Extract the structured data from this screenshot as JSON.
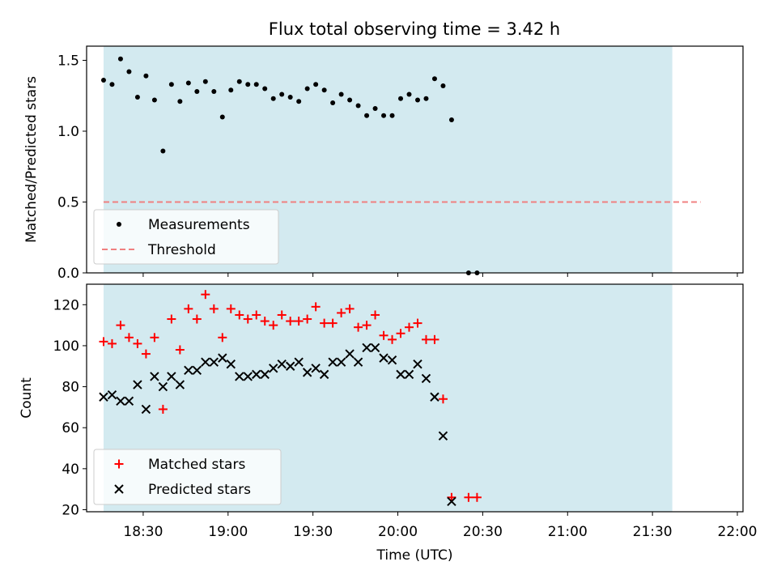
{
  "chart_data": [
    {
      "type": "scatter",
      "title": "Flux total observing time = 3.42 h",
      "xlabel": "",
      "ylabel": "Matched/Predicted stars",
      "xlim": [
        "18:10",
        "22:02"
      ],
      "ylim": [
        0,
        1.6
      ],
      "grid": false,
      "legend_position": "lower-left",
      "shaded_range": {
        "x": [
          "18:16",
          "21:37"
        ],
        "color": "#d3eaf0"
      },
      "yticks": [
        0.0,
        0.5,
        1.0,
        1.5
      ],
      "ytick_labels": [
        "0.0",
        "0.5",
        "1.0",
        "1.5"
      ],
      "series": [
        {
          "name": "Measurements",
          "kind": "scatter",
          "marker": "dot",
          "color": "#000000",
          "points": [
            [
              "18:16",
              1.36
            ],
            [
              "18:19",
              1.33
            ],
            [
              "18:22",
              1.51
            ],
            [
              "18:25",
              1.42
            ],
            [
              "18:28",
              1.24
            ],
            [
              "18:31",
              1.39
            ],
            [
              "18:34",
              1.22
            ],
            [
              "18:37",
              0.86
            ],
            [
              "18:40",
              1.33
            ],
            [
              "18:43",
              1.21
            ],
            [
              "18:46",
              1.34
            ],
            [
              "18:49",
              1.28
            ],
            [
              "18:52",
              1.35
            ],
            [
              "18:55",
              1.28
            ],
            [
              "18:58",
              1.1
            ],
            [
              "19:01",
              1.29
            ],
            [
              "19:04",
              1.35
            ],
            [
              "19:07",
              1.33
            ],
            [
              "19:10",
              1.33
            ],
            [
              "19:13",
              1.3
            ],
            [
              "19:16",
              1.23
            ],
            [
              "19:19",
              1.26
            ],
            [
              "19:22",
              1.24
            ],
            [
              "19:25",
              1.21
            ],
            [
              "19:28",
              1.3
            ],
            [
              "19:31",
              1.33
            ],
            [
              "19:34",
              1.29
            ],
            [
              "19:37",
              1.2
            ],
            [
              "19:40",
              1.26
            ],
            [
              "19:43",
              1.22
            ],
            [
              "19:46",
              1.18
            ],
            [
              "19:49",
              1.11
            ],
            [
              "19:52",
              1.16
            ],
            [
              "19:55",
              1.11
            ],
            [
              "19:58",
              1.11
            ],
            [
              "20:01",
              1.23
            ],
            [
              "20:04",
              1.26
            ],
            [
              "20:07",
              1.22
            ],
            [
              "20:10",
              1.23
            ],
            [
              "20:13",
              1.37
            ],
            [
              "20:16",
              1.32
            ],
            [
              "20:19",
              1.08
            ],
            [
              "20:25",
              0.0
            ],
            [
              "20:28",
              0.0
            ]
          ]
        },
        {
          "name": "Threshold",
          "kind": "dashed-line",
          "color": "#f08080",
          "points": [
            [
              "18:16",
              0.5
            ],
            [
              "21:47",
              0.5
            ]
          ]
        }
      ]
    },
    {
      "type": "scatter",
      "title": "",
      "xlabel": "Time (UTC)",
      "ylabel": "Count",
      "xlim": [
        "18:10",
        "22:02"
      ],
      "ylim": [
        19,
        130
      ],
      "grid": false,
      "legend_position": "lower-left",
      "shaded_range": {
        "x": [
          "18:16",
          "21:37"
        ],
        "color": "#d3eaf0"
      },
      "yticks": [
        20,
        40,
        60,
        80,
        100,
        120
      ],
      "ytick_labels": [
        "20",
        "40",
        "60",
        "80",
        "100",
        "120"
      ],
      "xticks": [
        "18:30",
        "19:00",
        "19:30",
        "20:00",
        "20:30",
        "21:00",
        "21:30",
        "22:00"
      ],
      "xtick_labels": [
        "18:30",
        "19:00",
        "19:30",
        "20:00",
        "20:30",
        "21:00",
        "21:30",
        "22:00"
      ],
      "series": [
        {
          "name": "Matched stars",
          "kind": "scatter",
          "marker": "plus",
          "color": "#ff0000",
          "points": [
            [
              "18:16",
              102
            ],
            [
              "18:19",
              101
            ],
            [
              "18:22",
              110
            ],
            [
              "18:25",
              104
            ],
            [
              "18:28",
              101
            ],
            [
              "18:31",
              96
            ],
            [
              "18:34",
              104
            ],
            [
              "18:37",
              69
            ],
            [
              "18:40",
              113
            ],
            [
              "18:43",
              98
            ],
            [
              "18:46",
              118
            ],
            [
              "18:49",
              113
            ],
            [
              "18:52",
              125
            ],
            [
              "18:55",
              118
            ],
            [
              "18:58",
              104
            ],
            [
              "19:01",
              118
            ],
            [
              "19:04",
              115
            ],
            [
              "19:07",
              113
            ],
            [
              "19:10",
              115
            ],
            [
              "19:13",
              112
            ],
            [
              "19:16",
              110
            ],
            [
              "19:19",
              115
            ],
            [
              "19:22",
              112
            ],
            [
              "19:25",
              112
            ],
            [
              "19:28",
              113
            ],
            [
              "19:31",
              119
            ],
            [
              "19:34",
              111
            ],
            [
              "19:37",
              111
            ],
            [
              "19:40",
              116
            ],
            [
              "19:43",
              118
            ],
            [
              "19:46",
              109
            ],
            [
              "19:49",
              110
            ],
            [
              "19:52",
              115
            ],
            [
              "19:55",
              105
            ],
            [
              "19:58",
              103
            ],
            [
              "20:01",
              106
            ],
            [
              "20:04",
              109
            ],
            [
              "20:07",
              111
            ],
            [
              "20:10",
              103
            ],
            [
              "20:13",
              103
            ],
            [
              "20:16",
              74
            ],
            [
              "20:19",
              26
            ],
            [
              "20:25",
              26
            ],
            [
              "20:28",
              26
            ]
          ]
        },
        {
          "name": "Predicted stars",
          "kind": "scatter",
          "marker": "x",
          "color": "#000000",
          "points": [
            [
              "18:16",
              75
            ],
            [
              "18:19",
              76
            ],
            [
              "18:22",
              73
            ],
            [
              "18:25",
              73
            ],
            [
              "18:28",
              81
            ],
            [
              "18:31",
              69
            ],
            [
              "18:34",
              85
            ],
            [
              "18:37",
              80
            ],
            [
              "18:40",
              85
            ],
            [
              "18:43",
              81
            ],
            [
              "18:46",
              88
            ],
            [
              "18:49",
              88
            ],
            [
              "18:52",
              92
            ],
            [
              "18:55",
              92
            ],
            [
              "18:58",
              94
            ],
            [
              "19:01",
              91
            ],
            [
              "19:04",
              85
            ],
            [
              "19:07",
              85
            ],
            [
              "19:10",
              86
            ],
            [
              "19:13",
              86
            ],
            [
              "19:16",
              89
            ],
            [
              "19:19",
              91
            ],
            [
              "19:22",
              90
            ],
            [
              "19:25",
              92
            ],
            [
              "19:28",
              87
            ],
            [
              "19:31",
              89
            ],
            [
              "19:34",
              86
            ],
            [
              "19:37",
              92
            ],
            [
              "19:40",
              92
            ],
            [
              "19:43",
              96
            ],
            [
              "19:46",
              92
            ],
            [
              "19:49",
              99
            ],
            [
              "19:52",
              99
            ],
            [
              "19:55",
              94
            ],
            [
              "19:58",
              93
            ],
            [
              "20:01",
              86
            ],
            [
              "20:04",
              86
            ],
            [
              "20:07",
              91
            ],
            [
              "20:10",
              84
            ],
            [
              "20:13",
              75
            ],
            [
              "20:16",
              56
            ],
            [
              "20:19",
              24
            ]
          ]
        }
      ]
    }
  ]
}
